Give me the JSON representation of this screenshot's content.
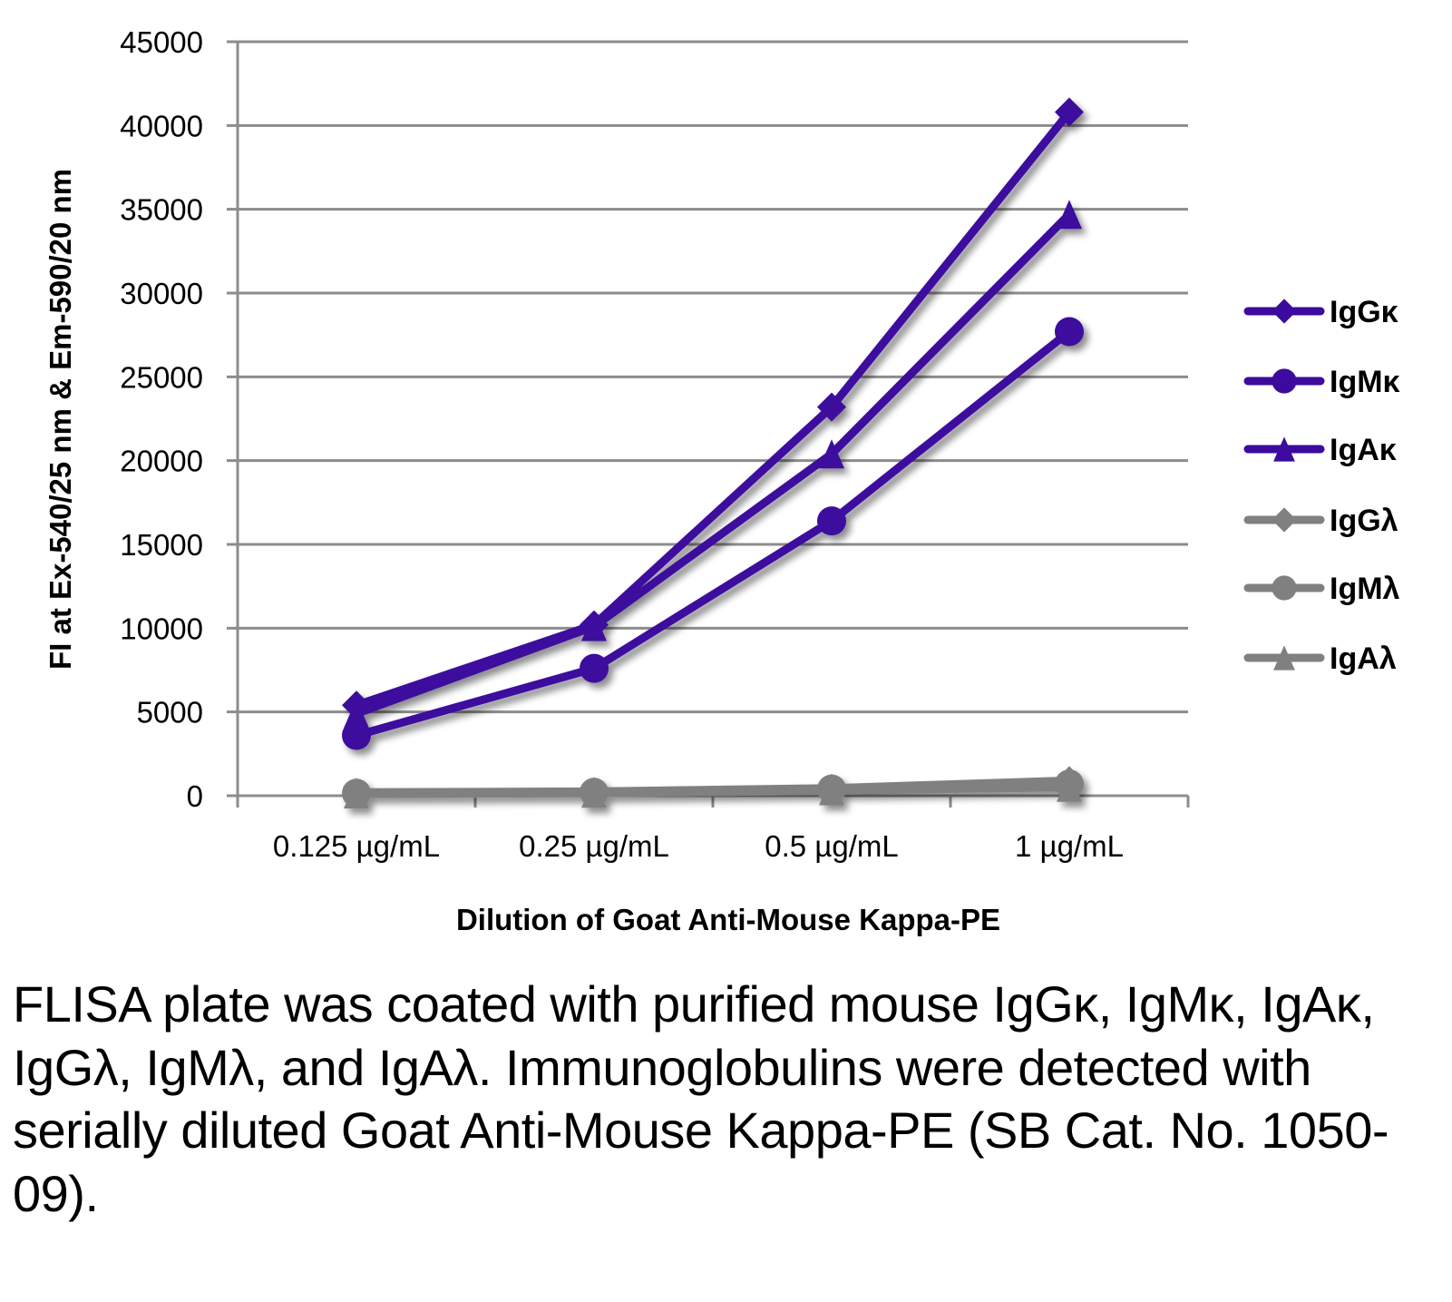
{
  "chart_data": {
    "type": "line",
    "title": "",
    "xlabel": "Dilution of Goat Anti-Mouse Kappa-PE",
    "ylabel": "FI at Ex-540/25 nm & Em-590/20 nm",
    "categories": [
      "0.125 µg/mL",
      "0.25 µg/mL",
      "0.5 µg/mL",
      "1 µg/mL"
    ],
    "ylim": [
      0,
      45000
    ],
    "yticks": [
      0,
      5000,
      10000,
      15000,
      20000,
      25000,
      30000,
      35000,
      40000,
      45000
    ],
    "grid": true,
    "legend_position": "right",
    "series": [
      {
        "name": "IgGκ",
        "marker": "diamond",
        "color": "#3d0a9e",
        "values": [
          5400,
          10200,
          23200,
          40800
        ]
      },
      {
        "name": "IgMκ",
        "marker": "circle",
        "color": "#3d0a9e",
        "values": [
          3600,
          7600,
          16400,
          27700
        ]
      },
      {
        "name": "IgAκ",
        "marker": "triangle",
        "color": "#3d0a9e",
        "values": [
          4900,
          10100,
          20400,
          34700
        ]
      },
      {
        "name": "IgGλ",
        "marker": "diamond",
        "color": "#808080",
        "values": [
          200,
          250,
          450,
          900
        ]
      },
      {
        "name": "IgMλ",
        "marker": "circle",
        "color": "#808080",
        "values": [
          150,
          200,
          400,
          700
        ]
      },
      {
        "name": "IgAλ",
        "marker": "triangle",
        "color": "#808080",
        "values": [
          100,
          150,
          300,
          500
        ]
      }
    ]
  },
  "caption": "FLISA plate was coated with purified mouse IgGκ, IgMκ, IgAκ, IgGλ, IgMλ, and IgAλ. Immunoglobulins were detected with serially diluted Goat Anti-Mouse Kappa-PE (SB Cat. No. 1050-09)."
}
